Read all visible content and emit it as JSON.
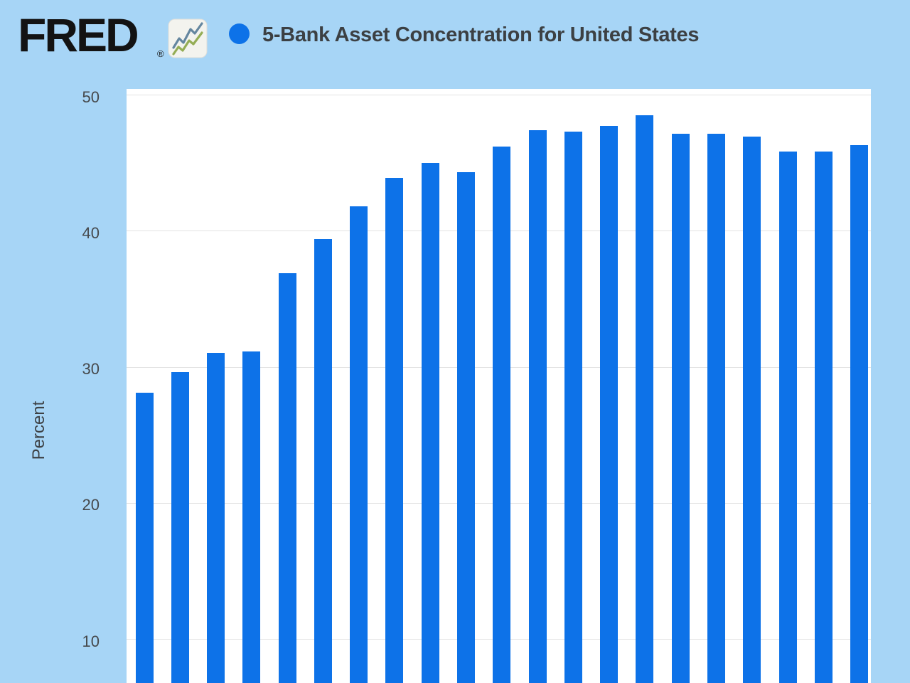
{
  "page": {
    "background_color": "#a7d5f6"
  },
  "header": {
    "logo_text": "FRED",
    "registered_mark": "®",
    "logo_icon": "line-chart-icon"
  },
  "legend": {
    "marker_shape": "circle",
    "marker_color": "#0d72e8"
  },
  "chart_data": {
    "type": "bar",
    "title": "5-Bank Asset Concentration for United States",
    "ylabel": "Percent",
    "y_ticks": [
      50,
      40,
      30,
      20,
      10
    ],
    "ylim_visible_top": 50,
    "grid": true,
    "legend_position": "top",
    "x_axis_labels_visible": false,
    "categories": [],
    "values": [
      28.1,
      29.6,
      31.0,
      31.1,
      36.9,
      39.4,
      41.8,
      43.9,
      45.0,
      44.3,
      46.2,
      47.4,
      47.3,
      47.7,
      48.5,
      47.1,
      47.1,
      46.9,
      45.8,
      45.8,
      46.3
    ],
    "unit": "%",
    "bar_color": "#0d72e8",
    "plot_background": "#ffffff",
    "gridline_color": "#e3e3e3"
  }
}
